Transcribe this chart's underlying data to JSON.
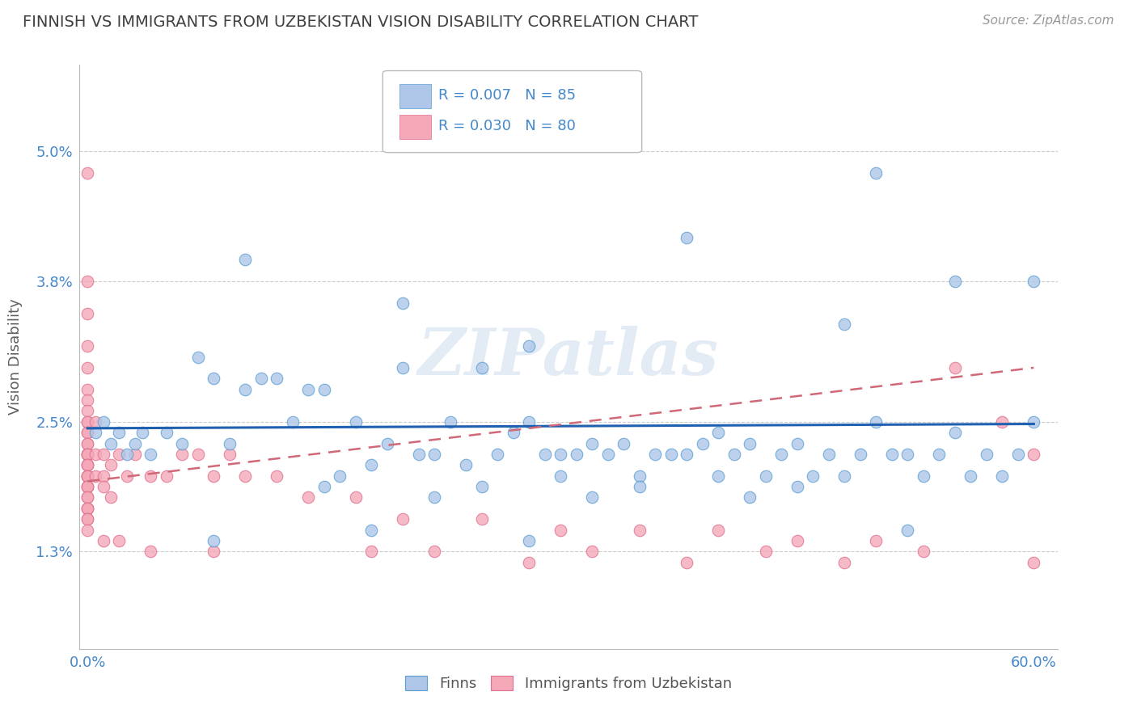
{
  "title": "FINNISH VS IMMIGRANTS FROM UZBEKISTAN VISION DISABILITY CORRELATION CHART",
  "source": "Source: ZipAtlas.com",
  "ylabel": "Vision Disability",
  "watermark": "ZIPatlas",
  "xlim": [
    -0.005,
    0.615
  ],
  "ylim": [
    0.004,
    0.058
  ],
  "ytick_positions": [
    0.013,
    0.025,
    0.038,
    0.05
  ],
  "ytick_labels": [
    "1.3%",
    "2.5%",
    "3.8%",
    "5.0%"
  ],
  "legend_labels": [
    "Finns",
    "Immigrants from Uzbekistan"
  ],
  "r_finns": 0.007,
  "n_finns": 85,
  "r_uzbek": 0.03,
  "n_uzbek": 80,
  "color_finns": "#aec6e8",
  "color_uzbek": "#f4a8b8",
  "edge_color_finns": "#5a9fd4",
  "edge_color_uzbek": "#e07090",
  "line_color_finns": "#2060b0",
  "line_color_uzbek": "#d06878",
  "background_color": "#ffffff",
  "grid_color": "#cccccc",
  "title_color": "#404040",
  "axis_label_color": "#606060",
  "tick_color": "#4488cc",
  "finns_x": [
    0.005,
    0.01,
    0.015,
    0.02,
    0.025,
    0.03,
    0.035,
    0.04,
    0.05,
    0.06,
    0.07,
    0.08,
    0.09,
    0.1,
    0.11,
    0.12,
    0.13,
    0.14,
    0.15,
    0.16,
    0.17,
    0.18,
    0.19,
    0.2,
    0.21,
    0.22,
    0.23,
    0.24,
    0.25,
    0.26,
    0.27,
    0.28,
    0.29,
    0.3,
    0.31,
    0.32,
    0.33,
    0.34,
    0.35,
    0.36,
    0.37,
    0.38,
    0.39,
    0.4,
    0.41,
    0.42,
    0.43,
    0.44,
    0.45,
    0.46,
    0.47,
    0.48,
    0.49,
    0.5,
    0.51,
    0.52,
    0.53,
    0.54,
    0.55,
    0.56,
    0.57,
    0.58,
    0.59,
    0.6,
    0.28,
    0.38,
    0.48,
    0.2,
    0.3,
    0.4,
    0.5,
    0.55,
    0.6,
    0.1,
    0.25,
    0.35,
    0.45,
    0.15,
    0.22,
    0.32,
    0.42,
    0.52,
    0.08,
    0.18,
    0.28
  ],
  "finns_y": [
    0.024,
    0.025,
    0.023,
    0.024,
    0.022,
    0.023,
    0.024,
    0.022,
    0.024,
    0.023,
    0.031,
    0.029,
    0.023,
    0.028,
    0.029,
    0.029,
    0.025,
    0.028,
    0.028,
    0.02,
    0.025,
    0.021,
    0.023,
    0.03,
    0.022,
    0.022,
    0.025,
    0.021,
    0.03,
    0.022,
    0.024,
    0.025,
    0.022,
    0.022,
    0.022,
    0.023,
    0.022,
    0.023,
    0.02,
    0.022,
    0.022,
    0.022,
    0.023,
    0.024,
    0.022,
    0.023,
    0.02,
    0.022,
    0.023,
    0.02,
    0.022,
    0.02,
    0.022,
    0.025,
    0.022,
    0.022,
    0.02,
    0.022,
    0.024,
    0.02,
    0.022,
    0.02,
    0.022,
    0.025,
    0.032,
    0.042,
    0.034,
    0.036,
    0.02,
    0.02,
    0.048,
    0.038,
    0.038,
    0.04,
    0.019,
    0.019,
    0.019,
    0.019,
    0.018,
    0.018,
    0.018,
    0.015,
    0.014,
    0.015,
    0.014
  ],
  "uzbek_x": [
    0.0,
    0.0,
    0.0,
    0.0,
    0.0,
    0.0,
    0.0,
    0.0,
    0.0,
    0.0,
    0.0,
    0.0,
    0.0,
    0.0,
    0.0,
    0.0,
    0.0,
    0.0,
    0.0,
    0.0,
    0.0,
    0.0,
    0.0,
    0.0,
    0.0,
    0.0,
    0.0,
    0.0,
    0.0,
    0.0,
    0.0,
    0.0,
    0.0,
    0.0,
    0.0,
    0.0,
    0.005,
    0.005,
    0.005,
    0.01,
    0.01,
    0.01,
    0.015,
    0.015,
    0.02,
    0.025,
    0.03,
    0.04,
    0.05,
    0.06,
    0.07,
    0.08,
    0.09,
    0.1,
    0.12,
    0.14,
    0.17,
    0.2,
    0.25,
    0.3,
    0.35,
    0.4,
    0.45,
    0.5,
    0.55,
    0.58,
    0.6,
    0.43,
    0.53,
    0.6,
    0.32,
    0.22,
    0.48,
    0.38,
    0.28,
    0.18,
    0.08,
    0.04,
    0.02,
    0.01
  ],
  "uzbek_y": [
    0.048,
    0.038,
    0.035,
    0.032,
    0.03,
    0.028,
    0.027,
    0.026,
    0.025,
    0.025,
    0.024,
    0.024,
    0.023,
    0.023,
    0.022,
    0.022,
    0.022,
    0.022,
    0.021,
    0.021,
    0.021,
    0.02,
    0.02,
    0.02,
    0.02,
    0.019,
    0.019,
    0.019,
    0.018,
    0.018,
    0.017,
    0.017,
    0.017,
    0.016,
    0.016,
    0.015,
    0.025,
    0.022,
    0.02,
    0.022,
    0.02,
    0.019,
    0.021,
    0.018,
    0.022,
    0.02,
    0.022,
    0.02,
    0.02,
    0.022,
    0.022,
    0.02,
    0.022,
    0.02,
    0.02,
    0.018,
    0.018,
    0.016,
    0.016,
    0.015,
    0.015,
    0.015,
    0.014,
    0.014,
    0.03,
    0.025,
    0.022,
    0.013,
    0.013,
    0.012,
    0.013,
    0.013,
    0.012,
    0.012,
    0.012,
    0.013,
    0.013,
    0.013,
    0.014,
    0.014
  ],
  "finns_line_x": [
    0.0,
    0.6
  ],
  "finns_line_y": [
    0.0244,
    0.0248
  ],
  "uzbek_line_x": [
    0.0,
    0.6
  ],
  "uzbek_line_y": [
    0.0195,
    0.03
  ]
}
